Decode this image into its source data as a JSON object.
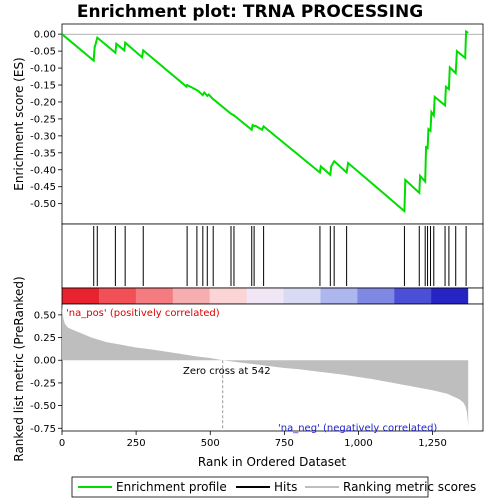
{
  "chart_data": {
    "type": "line",
    "title": "Enrichment plot: TRNA PROCESSING",
    "xlabel": "Rank in Ordered Dataset",
    "xlim": [
      0,
      1420
    ],
    "x_ticks": [
      "0",
      "250",
      "500",
      "750",
      "1,000",
      "1,250"
    ],
    "x_tick_values": [
      0,
      250,
      500,
      750,
      1000,
      1250
    ],
    "es_panel": {
      "ylabel": "Enrichment score (ES)",
      "ylim": [
        -0.56,
        0.03
      ],
      "y_ticks": [
        "0.00",
        "-0.05",
        "-0.10",
        "-0.15",
        "-0.20",
        "-0.25",
        "-0.30",
        "-0.35",
        "-0.40",
        "-0.45",
        "-0.50"
      ],
      "y_tick_values": [
        0.0,
        -0.05,
        -0.1,
        -0.15,
        -0.2,
        -0.25,
        -0.3,
        -0.35,
        -0.4,
        -0.45,
        -0.5
      ],
      "series": [
        {
          "name": "Enrichment profile",
          "color": "#00dd00",
          "x": [
            0,
            107,
            110,
            119,
            180,
            183,
            210,
            213,
            270,
            274,
            420,
            422,
            455,
            460,
            475,
            480,
            490,
            495,
            510,
            515,
            570,
            575,
            580,
            585,
            640,
            643,
            648,
            652,
            675,
            680,
            870,
            873,
            905,
            908,
            918,
            922,
            960,
            965,
            1155,
            1158,
            1205,
            1208,
            1225,
            1228,
            1233,
            1236,
            1243,
            1246,
            1254,
            1257,
            1292,
            1295,
            1305,
            1308,
            1328,
            1332,
            1360,
            1363,
            1370
          ],
          "y": [
            0.0,
            -0.078,
            -0.04,
            -0.01,
            -0.055,
            -0.028,
            -0.048,
            -0.025,
            -0.068,
            -0.048,
            -0.155,
            -0.15,
            -0.165,
            -0.168,
            -0.18,
            -0.172,
            -0.182,
            -0.178,
            -0.192,
            -0.195,
            -0.235,
            -0.237,
            -0.24,
            -0.243,
            -0.282,
            -0.268,
            -0.271,
            -0.27,
            -0.282,
            -0.272,
            -0.408,
            -0.39,
            -0.415,
            -0.39,
            -0.375,
            -0.378,
            -0.408,
            -0.38,
            -0.522,
            -0.43,
            -0.468,
            -0.418,
            -0.435,
            -0.33,
            -0.34,
            -0.28,
            -0.285,
            -0.23,
            -0.24,
            -0.185,
            -0.21,
            -0.155,
            -0.162,
            -0.098,
            -0.115,
            -0.05,
            -0.07,
            0.008,
            0.004
          ]
        }
      ]
    },
    "hits": {
      "name": "Hits",
      "color": "#000000",
      "x": [
        107,
        119,
        180,
        213,
        274,
        422,
        455,
        475,
        490,
        510,
        570,
        580,
        640,
        648,
        680,
        870,
        905,
        918,
        960,
        1155,
        1205,
        1225,
        1233,
        1243,
        1254,
        1292,
        1305,
        1328,
        1363
      ]
    },
    "ranked_metric_panel": {
      "ylabel": "Ranked list metric (PreRanked)",
      "name": "Ranking metric scores",
      "color": "#bebebe",
      "ylim": [
        -0.78,
        0.62
      ],
      "y_ticks": [
        "0.50",
        "0.25",
        "0.00",
        "-0.25",
        "-0.50",
        "-0.75"
      ],
      "y_tick_values": [
        0.5,
        0.25,
        0.0,
        -0.25,
        -0.5,
        -0.75
      ],
      "x": [
        0,
        5,
        10,
        20,
        40,
        70,
        100,
        150,
        200,
        250,
        300,
        350,
        400,
        450,
        500,
        542,
        600,
        650,
        700,
        750,
        800,
        850,
        900,
        950,
        1000,
        1050,
        1100,
        1150,
        1200,
        1250,
        1300,
        1320,
        1340,
        1355,
        1362,
        1366,
        1369,
        1370
      ],
      "y": [
        0.59,
        0.45,
        0.4,
        0.36,
        0.33,
        0.29,
        0.25,
        0.2,
        0.17,
        0.14,
        0.12,
        0.095,
        0.07,
        0.045,
        0.025,
        0.0,
        -0.025,
        -0.045,
        -0.065,
        -0.085,
        -0.1,
        -0.12,
        -0.14,
        -0.16,
        -0.185,
        -0.21,
        -0.24,
        -0.27,
        -0.3,
        -0.33,
        -0.37,
        -0.4,
        -0.43,
        -0.47,
        -0.52,
        -0.58,
        -0.68,
        -0.74
      ]
    },
    "zero_cross": 542,
    "annotations": {
      "pos_label": "'na_pos' (positively correlated)",
      "neg_label": "'na_neg' (negatively correlated)",
      "zero_cross_label": "Zero cross at 542"
    },
    "heat_colors": [
      "#e8232e",
      "#f05056",
      "#f47c80",
      "#f7aeb0",
      "#fbd4d6",
      "#f1e6f5",
      "#d7dcf4",
      "#aeb6ee",
      "#7f88e2",
      "#4b4fd6",
      "#2624c2"
    ],
    "legend": {
      "placement": "bottom",
      "items": [
        "Enrichment profile",
        "Hits",
        "Ranking metric scores"
      ]
    }
  }
}
